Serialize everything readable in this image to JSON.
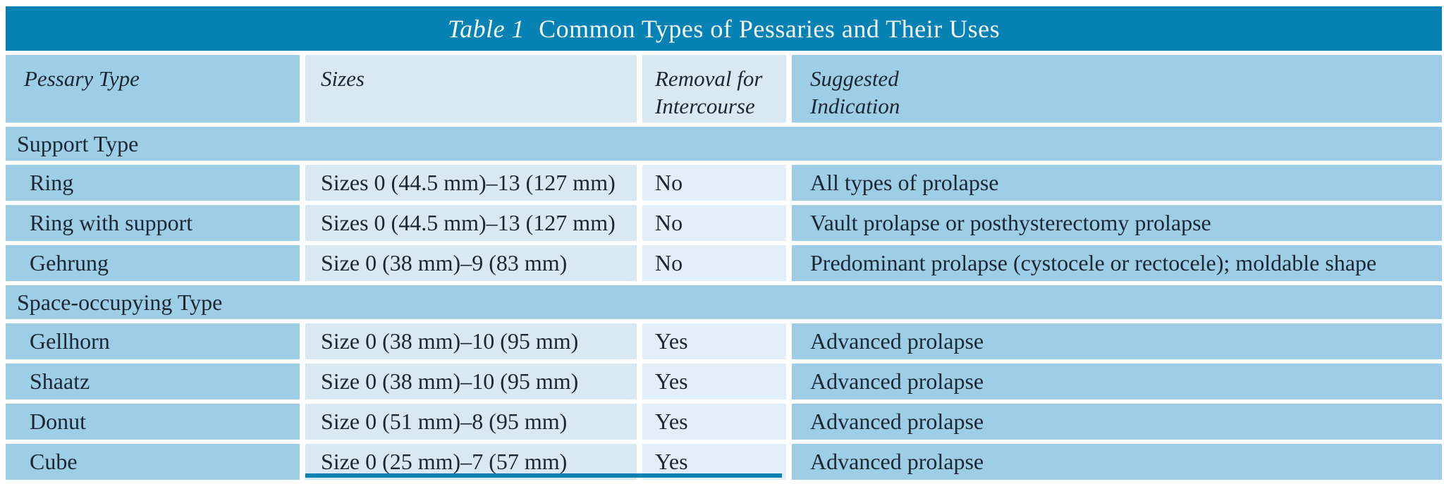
{
  "colors": {
    "title_bar": "#0681b4",
    "medium_cell": "#9dcee6",
    "light_cell": "#d8e9f4",
    "lighter_cell": "#e2eff8",
    "text": "#1b2733",
    "title_text": "#f2fafd",
    "page_bg": "#ffffff",
    "accent_line": "#0681b4"
  },
  "title": {
    "prefix": "Table 1",
    "text": "Common Types of Pessaries and Their Uses"
  },
  "columns": [
    {
      "label": "Pessary Type"
    },
    {
      "label": "Sizes"
    },
    {
      "line1": "Removal for",
      "line2": "Intercourse"
    },
    {
      "line1": "Suggested",
      "line2": "Indication"
    }
  ],
  "sections": [
    {
      "label": "Support Type",
      "rows": [
        {
          "type": "Ring",
          "sizes": "Sizes 0 (44.5 mm)–13 (127 mm)",
          "removal": "No",
          "indication": "All types of prolapse"
        },
        {
          "type": "Ring with support",
          "sizes": "Sizes 0 (44.5 mm)–13 (127 mm)",
          "removal": "No",
          "indication": "Vault prolapse or posthysterectomy prolapse"
        },
        {
          "type": "Gehrung",
          "sizes": "Size 0 (38 mm)–9 (83 mm)",
          "removal": "No",
          "indication": "Predominant prolapse (cystocele or rectocele); moldable shape"
        }
      ]
    },
    {
      "label": "Space-occupying Type",
      "rows": [
        {
          "type": "Gellhorn",
          "sizes": "Size 0 (38 mm)–10 (95 mm)",
          "removal": "Yes",
          "indication": "Advanced prolapse"
        },
        {
          "type": "Shaatz",
          "sizes": "Size 0 (38 mm)–10 (95 mm)",
          "removal": "Yes",
          "indication": "Advanced prolapse"
        },
        {
          "type": "Donut",
          "sizes": "Size 0 (51 mm)–8 (95 mm)",
          "removal": "Yes",
          "indication": "Advanced prolapse"
        },
        {
          "type": "Cube",
          "sizes": "Size 0 (25 mm)–7 (57 mm)",
          "removal": "Yes",
          "indication": "Advanced prolapse"
        }
      ]
    }
  ]
}
